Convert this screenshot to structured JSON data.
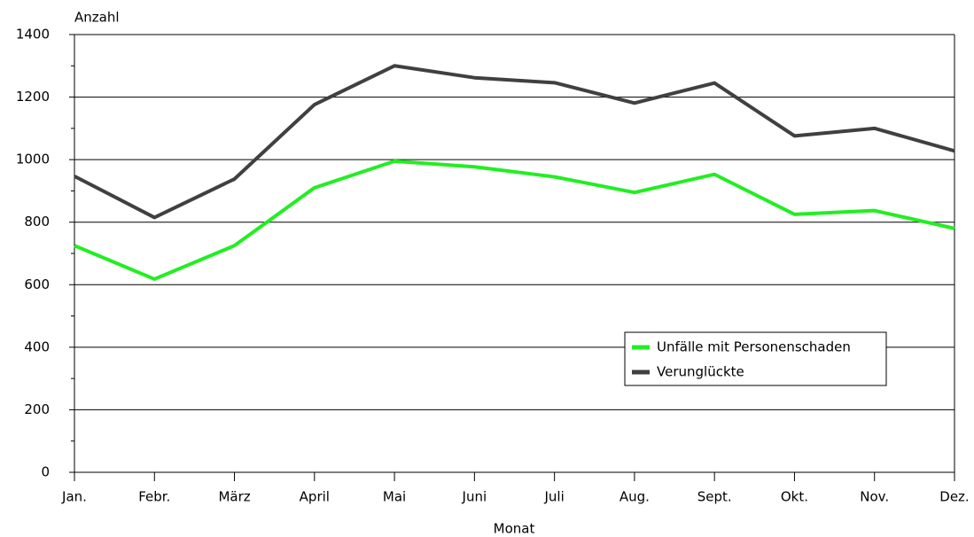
{
  "chart_data": {
    "type": "line",
    "y_label": "Anzahl",
    "x_label": "Monat",
    "categories": [
      "Jan.",
      "Febr.",
      "März",
      "April",
      "Mai",
      "Juni",
      "Juli",
      "Aug.",
      "Sept.",
      "Okt.",
      "Nov.",
      "Dez."
    ],
    "series": [
      {
        "name": "Unfälle mit Personenschaden",
        "color": "#22ee22",
        "values": [
          725,
          618,
          725,
          910,
          995,
          977,
          945,
          895,
          953,
          825,
          837,
          780
        ]
      },
      {
        "name": "Verunglückte",
        "color": "#404040",
        "values": [
          947,
          815,
          938,
          1176,
          1300,
          1262,
          1246,
          1181,
          1245,
          1076,
          1100,
          1028
        ]
      }
    ],
    "ylim": [
      0,
      1400
    ],
    "yticks": [
      0,
      200,
      400,
      600,
      800,
      1000,
      1200,
      1400
    ],
    "grid": true,
    "legend": "lower right"
  }
}
